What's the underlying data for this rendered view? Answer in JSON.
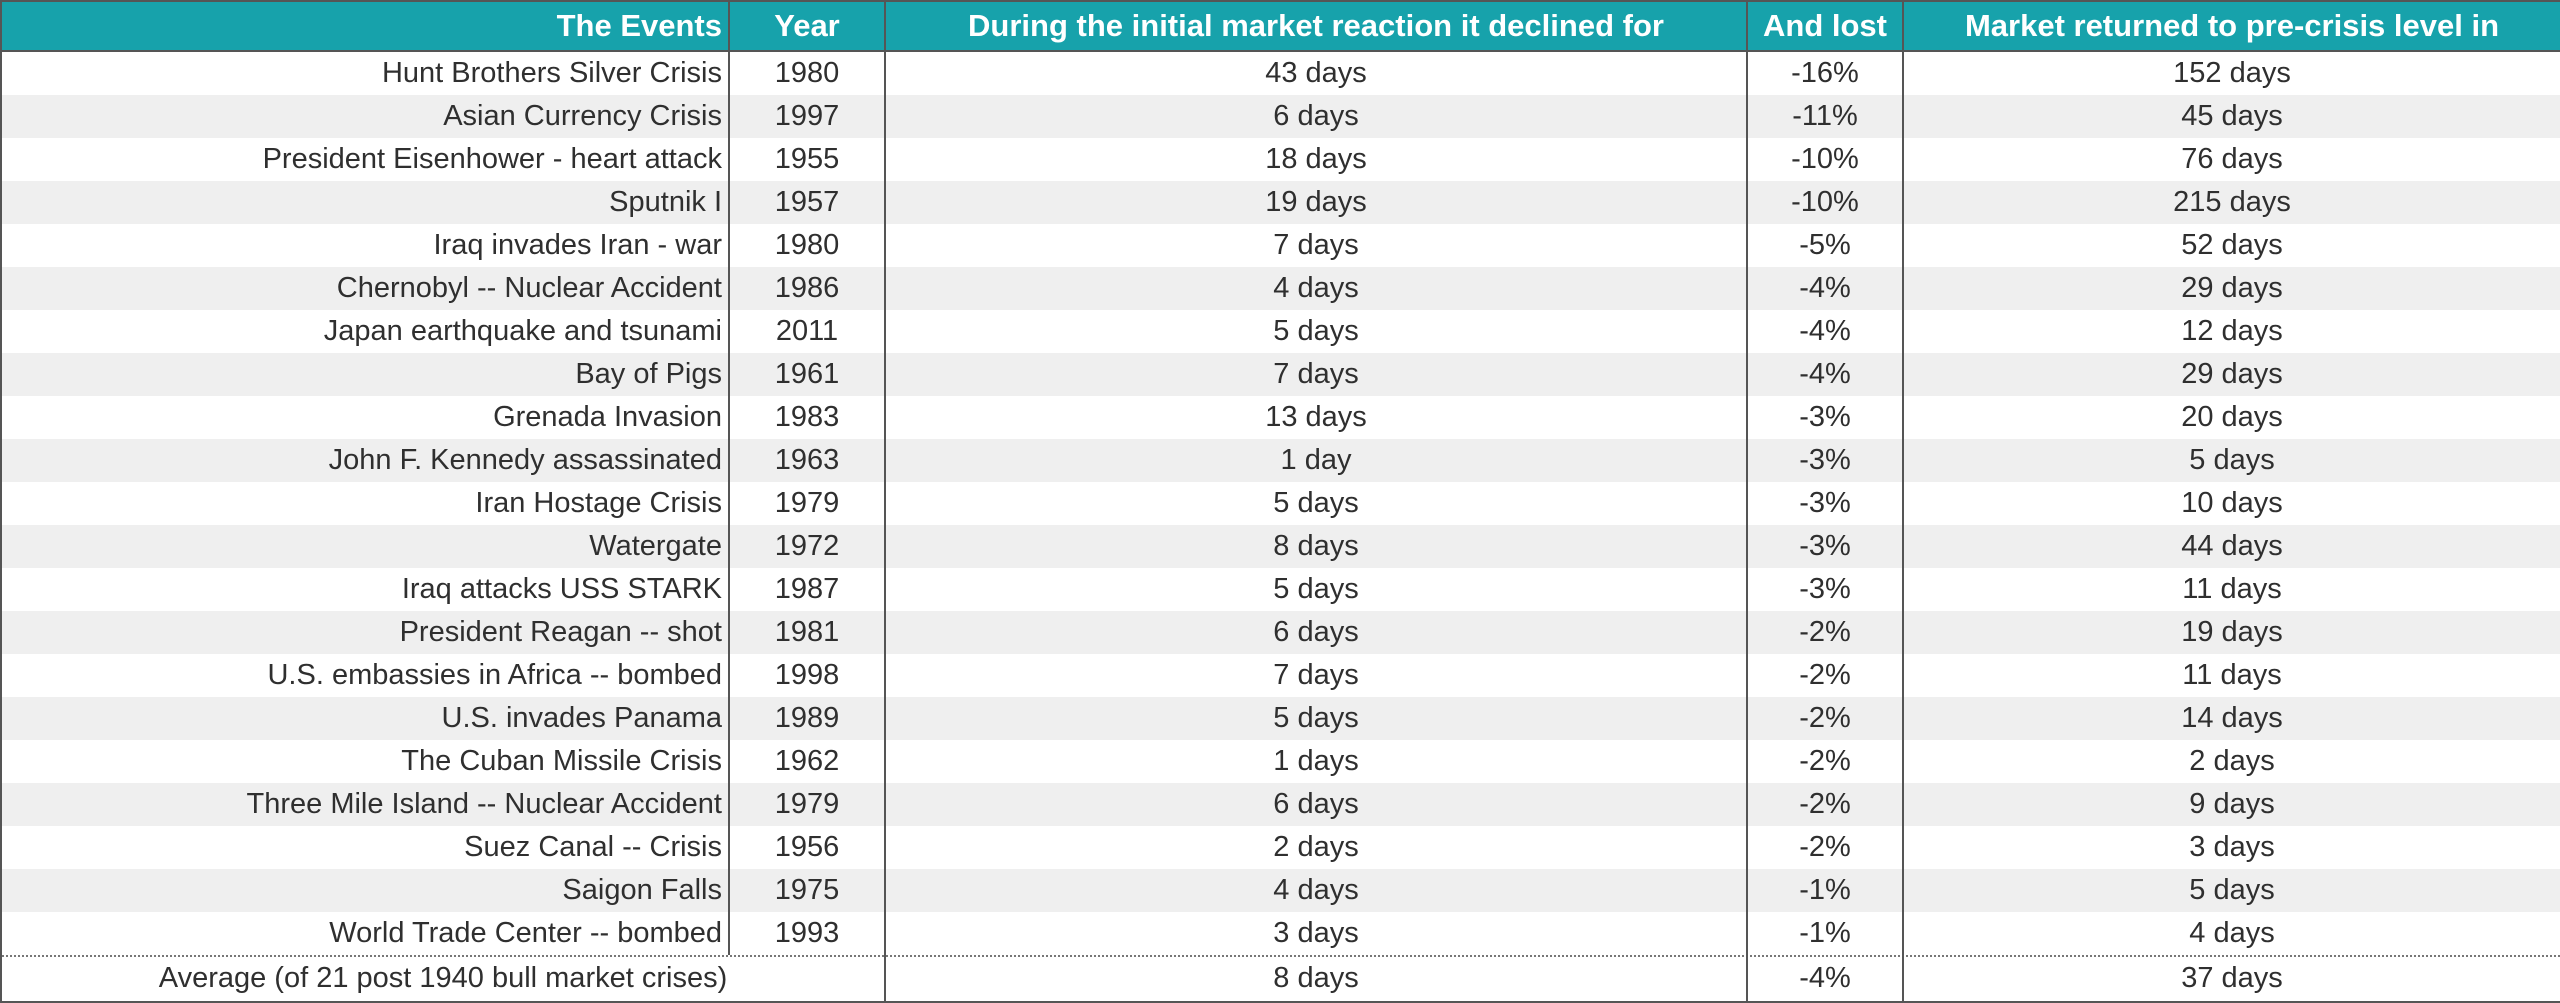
{
  "chart_data": {
    "type": "table",
    "columns": [
      "The Events",
      "Year",
      "During the initial market reaction it declined for",
      "And lost",
      "Market returned to pre-crisis level in"
    ],
    "rows": [
      [
        "Hunt Brothers Silver Crisis",
        "1980",
        "43 days",
        "-16%",
        "152 days"
      ],
      [
        "Asian Currency Crisis",
        "1997",
        "6 days",
        "-11%",
        "45 days"
      ],
      [
        "President Eisenhower - heart attack",
        "1955",
        "18 days",
        "-10%",
        "76 days"
      ],
      [
        "Sputnik I",
        "1957",
        "19 days",
        "-10%",
        "215 days"
      ],
      [
        "Iraq invades Iran - war",
        "1980",
        "7 days",
        "-5%",
        "52 days"
      ],
      [
        "Chernobyl -- Nuclear Accident",
        "1986",
        "4 days",
        "-4%",
        "29 days"
      ],
      [
        "Japan earthquake and tsunami",
        "2011",
        "5 days",
        "-4%",
        "12 days"
      ],
      [
        "Bay of Pigs",
        "1961",
        "7 days",
        "-4%",
        "29 days"
      ],
      [
        "Grenada Invasion",
        "1983",
        "13 days",
        "-3%",
        "20 days"
      ],
      [
        "John F. Kennedy assassinated",
        "1963",
        "1 day",
        "-3%",
        "5 days"
      ],
      [
        "Iran Hostage Crisis",
        "1979",
        "5 days",
        "-3%",
        "10 days"
      ],
      [
        "Watergate",
        "1972",
        "8 days",
        "-3%",
        "44 days"
      ],
      [
        "Iraq attacks USS STARK",
        "1987",
        "5 days",
        "-3%",
        "11 days"
      ],
      [
        "President Reagan -- shot",
        "1981",
        "6 days",
        "-2%",
        "19 days"
      ],
      [
        "U.S. embassies in Africa -- bombed",
        "1998",
        "7 days",
        "-2%",
        "11 days"
      ],
      [
        "U.S. invades Panama",
        "1989",
        "5 days",
        "-2%",
        "14 days"
      ],
      [
        "The Cuban Missile Crisis",
        "1962",
        "1 days",
        "-2%",
        "2 days"
      ],
      [
        "Three Mile Island -- Nuclear Accident",
        "1979",
        "6 days",
        "-2%",
        "9 days"
      ],
      [
        "Suez Canal -- Crisis",
        "1956",
        "2 days",
        "-2%",
        "3 days"
      ],
      [
        "Saigon Falls",
        "1975",
        "4 days",
        "-1%",
        "5 days"
      ],
      [
        "World Trade Center -- bombed",
        "1993",
        "3 days",
        "-1%",
        "4 days"
      ]
    ],
    "footer": {
      "label": "Average (of 21 post 1940 bull market crises)",
      "declined": "8 days",
      "lost": "-4%",
      "returned": "37 days"
    }
  },
  "colors": {
    "header_background": "#17a2ab",
    "header_text": "#ffffff",
    "stripe": "#efefef",
    "grid": "#555555"
  }
}
